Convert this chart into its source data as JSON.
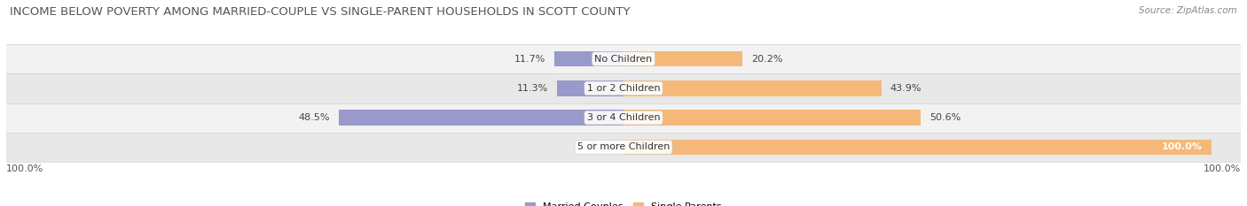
{
  "title": "INCOME BELOW POVERTY AMONG MARRIED-COUPLE VS SINGLE-PARENT HOUSEHOLDS IN SCOTT COUNTY",
  "source": "Source: ZipAtlas.com",
  "categories": [
    "No Children",
    "1 or 2 Children",
    "3 or 4 Children",
    "5 or more Children"
  ],
  "married_values": [
    11.7,
    11.3,
    48.5,
    0.0
  ],
  "single_values": [
    20.2,
    43.9,
    50.6,
    100.0
  ],
  "married_color": "#9999cc",
  "single_color": "#f5b878",
  "row_bg_colors": [
    "#f2f2f2",
    "#e8e8e8"
  ],
  "separator_color": "#d0d0d0",
  "bar_height": 0.52,
  "title_fontsize": 9.5,
  "label_fontsize": 8,
  "category_fontsize": 8,
  "source_fontsize": 7.5,
  "axis_label": "100.0%",
  "max_value": 100,
  "xlim_left": -105,
  "xlim_right": 105
}
